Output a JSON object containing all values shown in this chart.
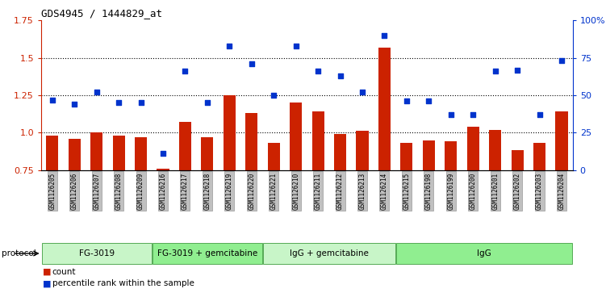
{
  "title": "GDS4945 / 1444829_at",
  "samples": [
    "GSM1126205",
    "GSM1126206",
    "GSM1126207",
    "GSM1126208",
    "GSM1126209",
    "GSM1126216",
    "GSM1126217",
    "GSM1126218",
    "GSM1126219",
    "GSM1126220",
    "GSM1126221",
    "GSM1126210",
    "GSM1126211",
    "GSM1126212",
    "GSM1126213",
    "GSM1126214",
    "GSM1126215",
    "GSM1126198",
    "GSM1126199",
    "GSM1126200",
    "GSM1126201",
    "GSM1126202",
    "GSM1126203",
    "GSM1126204"
  ],
  "bar_values": [
    0.98,
    0.96,
    1.0,
    0.98,
    0.97,
    0.76,
    1.07,
    0.97,
    1.25,
    1.13,
    0.93,
    1.2,
    1.14,
    0.99,
    1.01,
    1.57,
    0.93,
    0.95,
    0.94,
    1.04,
    1.02,
    0.88,
    0.93,
    1.14
  ],
  "percentile_y": [
    1.22,
    1.19,
    1.27,
    1.2,
    1.2,
    0.86,
    1.41,
    1.2,
    1.58,
    1.46,
    1.25,
    1.58,
    1.41,
    1.38,
    1.27,
    1.65,
    1.21,
    1.21,
    1.12,
    1.12,
    1.41,
    1.42,
    1.12,
    1.48
  ],
  "group_labels": [
    "FG-3019",
    "FG-3019 + gemcitabine",
    "IgG + gemcitabine",
    "IgG"
  ],
  "group_starts": [
    0,
    5,
    10,
    16
  ],
  "group_ends": [
    5,
    10,
    16,
    24
  ],
  "group_colors": [
    "#c8f5c8",
    "#90ee90",
    "#c8f5c8",
    "#90ee90"
  ],
  "ylim": [
    0.75,
    1.75
  ],
  "left_yticks": [
    0.75,
    1.0,
    1.25,
    1.5,
    1.75
  ],
  "right_ytick_pcts": [
    0,
    25,
    50,
    75,
    100
  ],
  "bar_color": "#CC2200",
  "dot_color": "#0033CC",
  "dotted_lines": [
    1.0,
    1.25,
    1.5
  ],
  "bar_width": 0.55,
  "group_edge": "#55AA55",
  "tick_bg": "#C0C0C0",
  "tick_edge": "#888888"
}
